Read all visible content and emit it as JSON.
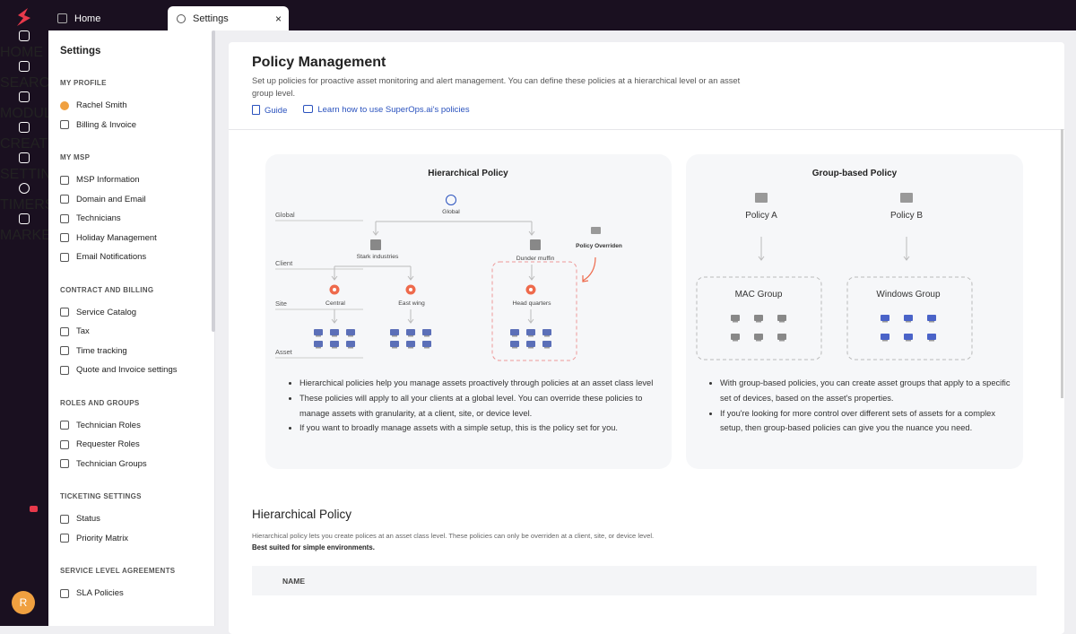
{
  "tabs": [
    "Home",
    "Settings"
  ],
  "rail": {
    "top": [
      "HOME",
      "SEARCH",
      "MODULES",
      "CREATE",
      "SETTINGS"
    ],
    "bottom": [
      "TIMERS",
      "MARKETPLACE"
    ],
    "avatar": "R"
  },
  "sidebar": {
    "title": "Settings",
    "sections": [
      {
        "heading": "MY PROFILE",
        "items": [
          "Rachel Smith",
          "Billing & Invoice"
        ]
      },
      {
        "heading": "MY MSP",
        "items": [
          "MSP Information",
          "Domain and Email",
          "Technicians",
          "Holiday Management",
          "Email Notifications"
        ]
      },
      {
        "heading": "CONTRACT AND BILLING",
        "items": [
          "Service Catalog",
          "Tax",
          "Time tracking",
          "Quote and Invoice settings"
        ]
      },
      {
        "heading": "ROLES AND GROUPS",
        "items": [
          "Technician Roles",
          "Requester Roles",
          "Technician Groups"
        ]
      },
      {
        "heading": "TICKETING SETTINGS",
        "items": [
          "Status",
          "Priority Matrix"
        ]
      },
      {
        "heading": "SERVICE LEVEL AGREEMENTS",
        "items": [
          "SLA Policies"
        ]
      }
    ]
  },
  "header": {
    "title": "Policy Management",
    "description": "Set up policies for proactive asset monitoring and alert management. You can define these policies at a hierarchical level or an asset group level.",
    "links": [
      "Guide",
      "Learn how to use SuperOps.ai's policies"
    ]
  },
  "cards": [
    {
      "title": "Hierarchical Policy",
      "levels": [
        "Global",
        "Client",
        "Site",
        "Asset"
      ],
      "nodes": {
        "global": "Global",
        "clients": [
          "Stark industries",
          "Dunder muffin"
        ],
        "sites": [
          "Central",
          "East wing",
          "Head quarters"
        ],
        "override": "Policy Overriden"
      },
      "bullets": [
        "Hierarchical policies help you manage assets proactively through policies at an asset class level",
        "These policies will apply to all your clients at a global level. You can override these policies to manage assets with granularity, at a client, site, or device level.",
        "If you want to broadly manage assets with a simple setup, this is the policy set for you."
      ]
    },
    {
      "title": "Group-based Policy",
      "policies": [
        "Policy A",
        "Policy B"
      ],
      "groups": [
        "MAC  Group",
        "Windows Group"
      ],
      "bullets": [
        "With group-based policies, you can create asset groups that apply to a specific set of devices, based on the asset's properties.",
        "If you're looking for more control over different sets of assets for a complex setup, then group-based policies can give you the nuance you need."
      ]
    }
  ],
  "section": {
    "title": "Hierarchical Policy",
    "description": "Hierarchical policy lets you create polices at an asset class level. These policies can only be overriden at a client, site, or device level.",
    "note": "Best suited for simple environments.",
    "table_header": "NAME"
  }
}
